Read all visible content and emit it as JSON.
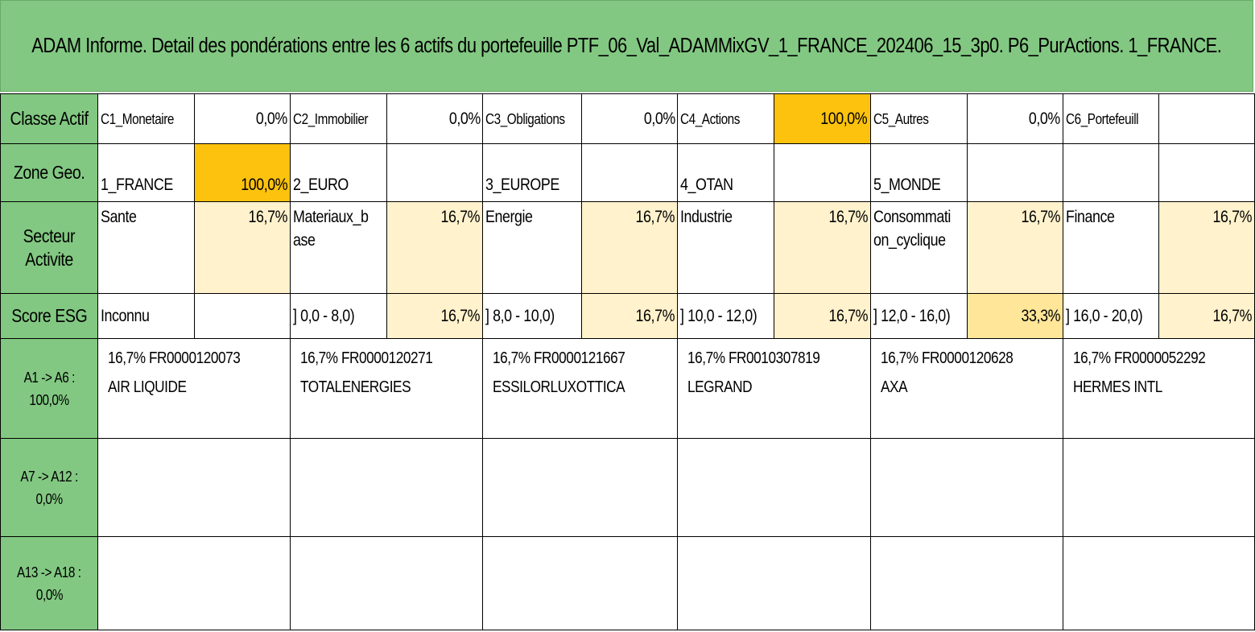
{
  "title": "ADAM Informe. Detail des pondérations entre les 6 actifs du portefeuille PTF_06_Val_ADAMMixGV_1_FRANCE_202406_15_3p0. P6_PurActions. 1_FRANCE.",
  "colors": {
    "header_green": "#82c882",
    "highlight_strong": "#fdc20d",
    "highlight_light": "#fff2cc",
    "highlight_mid": "#ffe699"
  },
  "classe_actif": {
    "label": "Classe Actif",
    "cells": [
      {
        "name": "C1_Monetaire",
        "value": "0,0%"
      },
      {
        "name": "C2_Immobilier",
        "value": "0,0%"
      },
      {
        "name": "C3_Obligations",
        "value": "0,0%"
      },
      {
        "name": "C4_Actions",
        "value": "100,0%"
      },
      {
        "name": "C5_Autres",
        "value": "0,0%"
      },
      {
        "name": "C6_Portefeuill",
        "value": ""
      }
    ]
  },
  "zone_geo": {
    "label": "Zone Geo.",
    "cells": [
      {
        "name": "1_FRANCE",
        "value": "100,0%"
      },
      {
        "name": "2_EURO",
        "value": ""
      },
      {
        "name": "3_EUROPE",
        "value": ""
      },
      {
        "name": "4_OTAN",
        "value": ""
      },
      {
        "name": "5_MONDE",
        "value": ""
      },
      {
        "name": "",
        "value": ""
      }
    ]
  },
  "secteur": {
    "label_line1": "Secteur",
    "label_line2": "Activite",
    "cells": [
      {
        "name": "Sante",
        "value": "16,7%"
      },
      {
        "name": "Materiaux_b ase",
        "name_line1": "Materiaux_b",
        "name_line2": "ase",
        "value": "16,7%"
      },
      {
        "name": "Energie",
        "value": "16,7%"
      },
      {
        "name": "Industrie",
        "value": "16,7%"
      },
      {
        "name": "Consommati on_cyclique",
        "name_line1": "Consommati",
        "name_line2": "on_cyclique",
        "value": "16,7%"
      },
      {
        "name": "Finance",
        "value": "16,7%"
      }
    ]
  },
  "score_esg": {
    "label": "Score ESG",
    "cells": [
      {
        "name": "Inconnu",
        "value": ""
      },
      {
        "name": "] 0,0 - 8,0)",
        "value": "16,7%"
      },
      {
        "name": "] 8,0 - 10,0)",
        "value": "16,7%"
      },
      {
        "name": "] 10,0 - 12,0)",
        "value": "16,7%"
      },
      {
        "name": "] 12,0 - 16,0)",
        "value": "33,3%"
      },
      {
        "name": "] 16,0 - 20,0)",
        "value": "16,7%"
      }
    ]
  },
  "assets_rows": [
    {
      "label_line1": "A1 -> A6 :",
      "label_line2": "100,0%",
      "assets": [
        {
          "line1": "16,7% FR0000120073",
          "line2": "AIR LIQUIDE"
        },
        {
          "line1": "16,7% FR0000120271",
          "line2": "TOTALENERGIES"
        },
        {
          "line1": "16,7% FR0000121667",
          "line2": "ESSILORLUXOTTICA"
        },
        {
          "line1": "16,7% FR0010307819",
          "line2": "LEGRAND"
        },
        {
          "line1": "16,7% FR0000120628",
          "line2": "AXA"
        },
        {
          "line1": "16,7% FR0000052292",
          "line2": "HERMES INTL"
        }
      ]
    },
    {
      "label_line1": "A7 -> A12 : 0,0%",
      "label_line2": ""
    },
    {
      "label_line1": "A13 -> A18 :",
      "label_line2": "0,0%"
    }
  ]
}
